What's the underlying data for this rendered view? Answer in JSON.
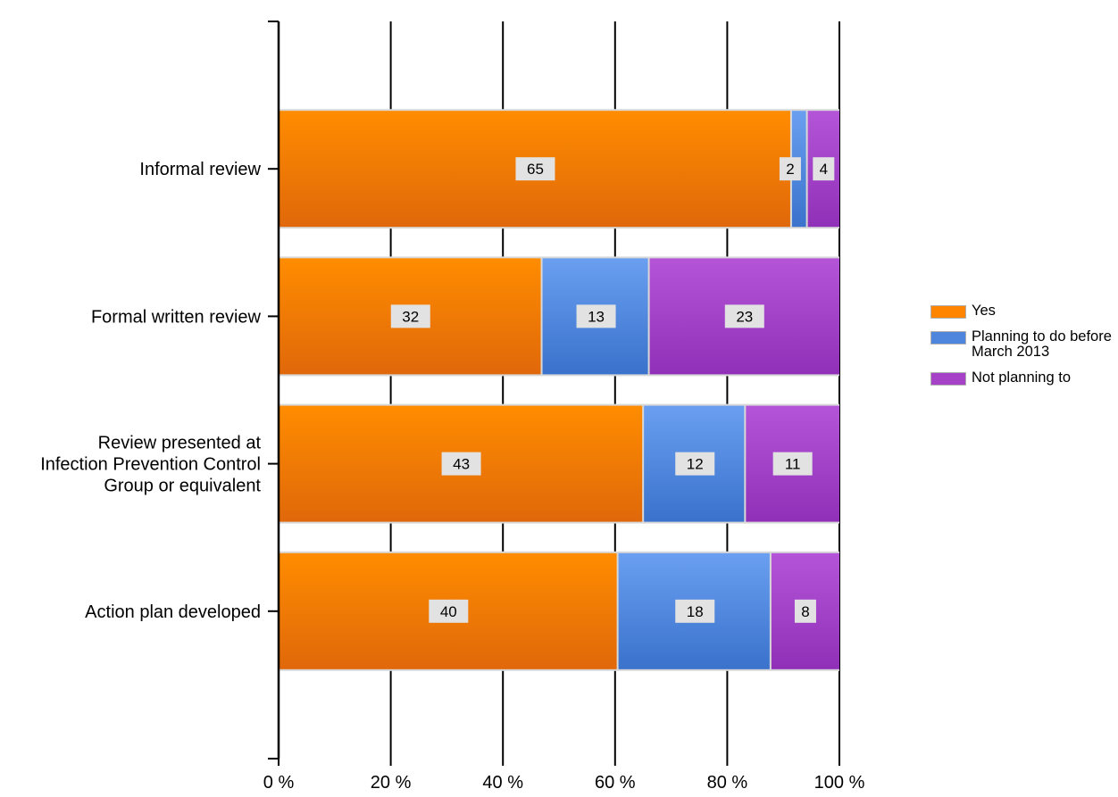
{
  "chart_data": {
    "type": "bar",
    "orientation": "horizontal",
    "stacked": "percent",
    "categories": [
      "Informal review",
      "Formal written review",
      "Review presented at Infection Prevention Control Group or equivalent",
      "Action plan developed"
    ],
    "category_label_lines": [
      [
        "Informal review"
      ],
      [
        "Formal written review"
      ],
      [
        "Review presented at",
        "Infection Prevention Control",
        "Group or equivalent"
      ],
      [
        "Action plan developed"
      ]
    ],
    "series": [
      {
        "name": "Yes",
        "values": [
          65,
          32,
          43,
          40
        ],
        "color_top": "#ff8c00",
        "color_bottom": "#e0680a"
      },
      {
        "name": "Planning to do before March 2013",
        "values": [
          2,
          13,
          12,
          18
        ],
        "color_top": "#6a9ff0",
        "color_bottom": "#3a72cc"
      },
      {
        "name": "Not planning to",
        "values": [
          4,
          23,
          11,
          8
        ],
        "color_top": "#b455d8",
        "color_bottom": "#9030b8"
      }
    ],
    "x_ticks": [
      "0 %",
      "20 %",
      "40 %",
      "60 %",
      "80 %",
      "100 %"
    ],
    "xlim": [
      0,
      100
    ],
    "grid": true,
    "legend_position": "right",
    "data_labels": true,
    "title": "",
    "xlabel": "",
    "ylabel": ""
  },
  "legend": {
    "items": [
      {
        "label": "Yes",
        "color": "#ff8400"
      },
      {
        "label": "Planning to do before March 2013",
        "color": "#4f86dd"
      },
      {
        "label": "Not planning to",
        "color": "#a642c8"
      }
    ]
  }
}
